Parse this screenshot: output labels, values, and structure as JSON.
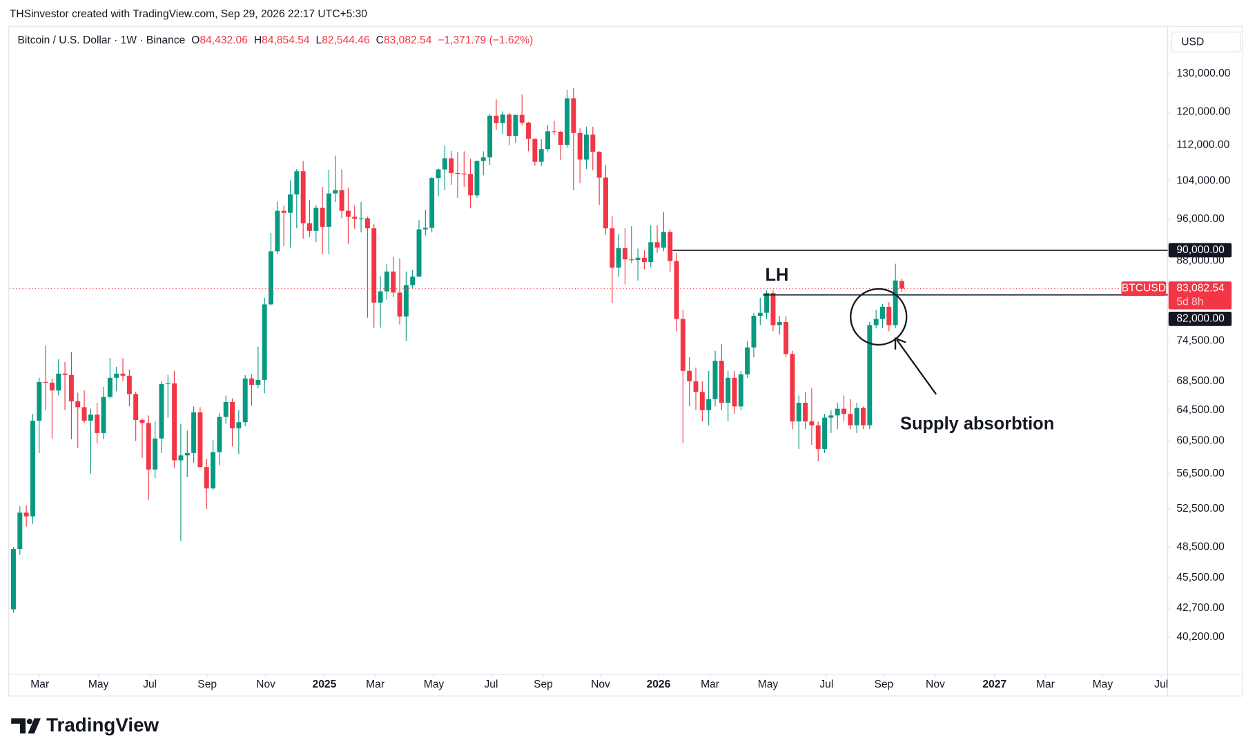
{
  "header": "THSinvestor created with TradingView.com, Sep 29, 2026 22:17 UTC+5:30",
  "legend": {
    "title": "Bitcoin / U.S. Dollar · 1W · Binance",
    "fields": [
      {
        "key": "O",
        "value": "84,432.06"
      },
      {
        "key": "H",
        "value": "84,854.54"
      },
      {
        "key": "L",
        "value": "82,544.46"
      },
      {
        "key": "C",
        "value": "83,082.54"
      }
    ],
    "change": "−1,371.79 (−1.62%)"
  },
  "currency": "USD",
  "brand": "TradingView",
  "chart_data": {
    "type": "candlestick",
    "log_scale": true,
    "grid": false,
    "up_color": "#089981",
    "down_color": "#f23645",
    "ylim": [
      37200,
      143000
    ],
    "yticks": [
      {
        "value": 130000,
        "label": "130,000.00"
      },
      {
        "value": 120000,
        "label": "120,000.00"
      },
      {
        "value": 112000,
        "label": "112,000.00"
      },
      {
        "value": 104000,
        "label": "104,000.00"
      },
      {
        "value": 96000,
        "label": "96,000.00"
      },
      {
        "value": 88000,
        "label": "88,000.00"
      },
      {
        "value": 74500,
        "label": "74,500.00"
      },
      {
        "value": 68500,
        "label": "68,500.00"
      },
      {
        "value": 64500,
        "label": "64,500.00"
      },
      {
        "value": 60500,
        "label": "60,500.00"
      },
      {
        "value": 56500,
        "label": "56,500.00"
      },
      {
        "value": 52500,
        "label": "52,500.00"
      },
      {
        "value": 48500,
        "label": "48,500.00"
      },
      {
        "value": 45500,
        "label": "45,500.00"
      },
      {
        "value": 42700,
        "label": "42,700.00"
      },
      {
        "value": 40200,
        "label": "40,200.00"
      }
    ],
    "xlim": [
      -0.6,
      179.3
    ],
    "xticks": [
      {
        "value": 4.1,
        "label": "Mar"
      },
      {
        "value": 13.2,
        "label": "May"
      },
      {
        "value": 21.2,
        "label": "Jul"
      },
      {
        "value": 30.1,
        "label": "Sep"
      },
      {
        "value": 39.2,
        "label": "Nov"
      },
      {
        "value": 48.3,
        "label": "2025"
      },
      {
        "value": 56.2,
        "label": "Mar"
      },
      {
        "value": 65.3,
        "label": "May"
      },
      {
        "value": 74.2,
        "label": "Jul"
      },
      {
        "value": 82.3,
        "label": "Sep"
      },
      {
        "value": 91.2,
        "label": "Nov"
      },
      {
        "value": 100.2,
        "label": "2026"
      },
      {
        "value": 108.2,
        "label": "Mar"
      },
      {
        "value": 117.2,
        "label": "May"
      },
      {
        "value": 126.3,
        "label": "Jul"
      },
      {
        "value": 135.2,
        "label": "Sep"
      },
      {
        "value": 143.2,
        "label": "Nov"
      },
      {
        "value": 152.4,
        "label": "2027"
      },
      {
        "value": 160.3,
        "label": "Mar"
      },
      {
        "value": 169.2,
        "label": "May"
      },
      {
        "value": 178.3,
        "label": "Jul"
      }
    ],
    "open": [
      42600,
      48300,
      52100,
      51700,
      63100,
      68400,
      68300,
      67200,
      69600,
      69400,
      65700,
      64900,
      63100,
      63900,
      61500,
      66300,
      69000,
      69600,
      69300,
      66700,
      63200,
      62800,
      57000,
      60800,
      68100,
      68200,
      58100,
      58700,
      59000,
      64200,
      57300,
      54800,
      59100,
      63600,
      65600,
      62100,
      62900,
      68900,
      68000,
      68700,
      80400,
      89800,
      97700,
      97300,
      101100,
      106100,
      95200,
      93700,
      98300,
      94500,
      101300,
      102000,
      97700,
      96500,
      96100,
      96200,
      94200,
      80700,
      82600,
      86100,
      82400,
      78400,
      83700,
      85200,
      94000,
      94300,
      104600,
      106500,
      109000,
      105700,
      105600,
      105500,
      100900,
      108400,
      109200,
      119100,
      117300,
      119400,
      114200,
      119300,
      117400,
      113500,
      108200,
      111100,
      115300,
      115200,
      112100,
      123500,
      114900,
      108700,
      114500,
      110500,
      104700,
      94200,
      86800,
      90400,
      88300,
      88200,
      88600,
      87800,
      91500,
      90500,
      93500,
      88000,
      78000,
      70000,
      68500,
      67000,
      64500,
      66000,
      71500,
      65500,
      69000,
      65000,
      69500,
      73500,
      78500,
      79000,
      82300,
      77000,
      77500,
      72500,
      63000,
      65500,
      63000,
      62500,
      59500,
      63500,
      63800,
      64700,
      64000,
      62500,
      64800,
      62500,
      77000,
      78000,
      80000,
      77000,
      84432.06
    ],
    "high": [
      48500,
      52800,
      52900,
      64000,
      69000,
      73800,
      68900,
      71700,
      71300,
      72800,
      66900,
      67200,
      64700,
      65500,
      67700,
      71900,
      70600,
      71900,
      70200,
      67000,
      63400,
      63800,
      63000,
      68500,
      69400,
      70000,
      62700,
      61800,
      65000,
      64900,
      58300,
      60600,
      64100,
      66500,
      66100,
      64500,
      69400,
      69500,
      73600,
      81500,
      93300,
      99600,
      98800,
      104100,
      106600,
      108400,
      99900,
      98900,
      102700,
      106400,
      109600,
      106500,
      102500,
      98800,
      99500,
      96500,
      95000,
      85300,
      87500,
      88800,
      88500,
      86100,
      86400,
      95800,
      97900,
      104800,
      106700,
      112000,
      110700,
      110400,
      110600,
      108900,
      108500,
      110600,
      119500,
      123200,
      120200,
      119800,
      119400,
      124500,
      117600,
      113600,
      113400,
      116800,
      117900,
      115400,
      125700,
      126200,
      116000,
      116400,
      116400,
      110600,
      107500,
      96600,
      93100,
      94200,
      94600,
      90300,
      90000,
      94800,
      94800,
      97500,
      94000,
      89500,
      79500,
      72000,
      70500,
      68500,
      70000,
      73000,
      74000,
      70000,
      70000,
      70000,
      74500,
      79000,
      81500,
      82800,
      82800,
      78500,
      78500,
      73000,
      66500,
      67000,
      67500,
      63000,
      64000,
      64500,
      65500,
      66500,
      66000,
      65500,
      65000,
      77500,
      79500,
      80500,
      80800,
      87500,
      84854.54
    ],
    "low": [
      42300,
      47700,
      50600,
      50900,
      59000,
      64500,
      60800,
      66500,
      64500,
      60700,
      59600,
      62800,
      56500,
      60200,
      60700,
      66100,
      67100,
      68500,
      65000,
      60500,
      58400,
      53500,
      56000,
      59000,
      63500,
      57200,
      49100,
      56100,
      57800,
      57200,
      52500,
      54600,
      57500,
      62700,
      59800,
      58900,
      62400,
      65100,
      67500,
      66800,
      80200,
      89300,
      90800,
      90500,
      94200,
      92200,
      92500,
      91500,
      89300,
      89300,
      99500,
      96200,
      91200,
      94100,
      93400,
      78200,
      76600,
      76600,
      81200,
      81600,
      77100,
      74500,
      83200,
      85100,
      92800,
      93400,
      100700,
      102000,
      103100,
      100400,
      102700,
      98200,
      100400,
      105200,
      107500,
      115700,
      114700,
      112000,
      112600,
      116800,
      110600,
      107300,
      107300,
      110600,
      114400,
      108600,
      111400,
      102000,
      103500,
      106600,
      106300,
      98900,
      93000,
      80600,
      85200,
      83800,
      87600,
      84500,
      86500,
      86900,
      89500,
      89800,
      86000,
      76000,
      60200,
      65000,
      64500,
      63000,
      62500,
      65000,
      64500,
      63000,
      64000,
      64500,
      69000,
      72000,
      77000,
      78000,
      76000,
      75500,
      72000,
      62000,
      59500,
      62000,
      60000,
      58000,
      59000,
      61500,
      62000,
      63000,
      62000,
      61500,
      62000,
      62000,
      76500,
      76500,
      76000,
      76500,
      82544.46
    ],
    "close": [
      48300,
      52100,
      51700,
      63100,
      68400,
      68300,
      67200,
      69600,
      69400,
      65700,
      64900,
      63100,
      63900,
      61500,
      66300,
      69000,
      69600,
      69300,
      66700,
      63200,
      62800,
      57000,
      60800,
      68100,
      68200,
      58100,
      58700,
      59000,
      64200,
      57300,
      54800,
      59100,
      63600,
      65600,
      62100,
      62900,
      68900,
      68000,
      68700,
      80400,
      89800,
      97700,
      97300,
      101100,
      106100,
      95200,
      93700,
      98300,
      94500,
      101300,
      102000,
      97700,
      96500,
      96100,
      96200,
      94200,
      80700,
      82600,
      86100,
      82400,
      78400,
      83700,
      85200,
      94000,
      94300,
      104600,
      106500,
      109000,
      105700,
      105600,
      105500,
      100900,
      108400,
      109200,
      119100,
      117300,
      119400,
      114200,
      119300,
      117400,
      113500,
      108200,
      111100,
      115300,
      115200,
      112100,
      123500,
      114900,
      108700,
      114500,
      110500,
      104700,
      94200,
      86800,
      90400,
      88300,
      88200,
      88600,
      87800,
      91500,
      90500,
      93500,
      88000,
      78000,
      70000,
      68500,
      67000,
      64500,
      66000,
      71500,
      65500,
      69000,
      65000,
      69500,
      73500,
      78500,
      79000,
      82300,
      77000,
      77500,
      72500,
      63000,
      65500,
      63000,
      62500,
      59500,
      63500,
      63800,
      64700,
      64000,
      62500,
      64800,
      62500,
      77000,
      78000,
      80000,
      77000,
      84500,
      83082.54
    ],
    "last_price": 83082.54,
    "last_price_label": "83,082.54",
    "countdown": "5d 8h",
    "symbol": "BTCUSD",
    "levels": [
      {
        "value": 90000,
        "label": "90,000.00"
      },
      {
        "value": 82000,
        "label": "82,000.00"
      }
    ],
    "annotations": [
      "LH",
      "Supply absorbtion"
    ]
  }
}
